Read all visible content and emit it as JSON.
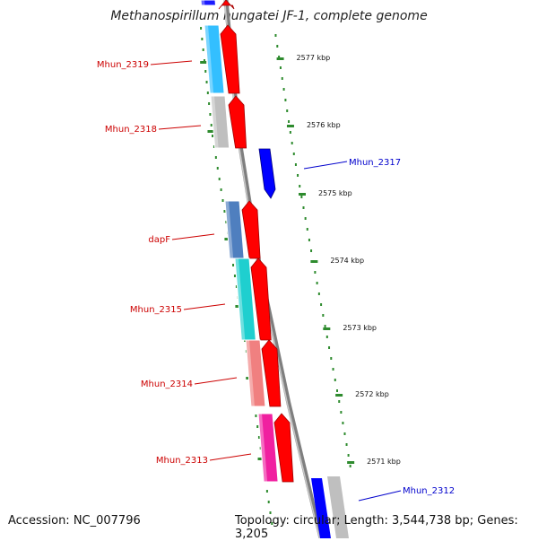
{
  "title": "Methanospirillum hungatei JF-1, complete genome",
  "accession": "Accession: NC_007796",
  "topology": "Topology: circular; Length: 3,544,738 bp; Genes: 3,205",
  "colors": {
    "forward_cds": "#ff0000",
    "reverse_cds": "#0000ff",
    "backbone": "#7f7f7f",
    "tick": "#2e8b2e",
    "label_forward": "#cc0000",
    "label_reverse": "#0000cc"
  },
  "ruler": {
    "ticks": [
      "2577 kbp",
      "2576 kbp",
      "2575 kbp",
      "2574 kbp",
      "2573 kbp",
      "2572 kbp",
      "2571 kbp"
    ]
  },
  "genes": [
    {
      "label": "",
      "strand": "+",
      "color": "#1a1aff"
    },
    {
      "label": "Mhun_2319",
      "strand": "+",
      "color": "#33bfff"
    },
    {
      "label": "Mhun_2318",
      "strand": "+",
      "color": "#bfbfbf"
    },
    {
      "label": "Mhun_2317",
      "strand": "-",
      "color": "#0000ff"
    },
    {
      "label": "dapF",
      "strand": "+",
      "color": "#4f7fbf"
    },
    {
      "label": "Mhun_2315",
      "strand": "+",
      "color": "#1fcfcf"
    },
    {
      "label": "Mhun_2314",
      "strand": "+",
      "color": "#f08080"
    },
    {
      "label": "Mhun_2313",
      "strand": "+",
      "color": "#f020a0"
    },
    {
      "label": "Mhun_2312",
      "strand": "-",
      "color": "#0000ff"
    }
  ]
}
